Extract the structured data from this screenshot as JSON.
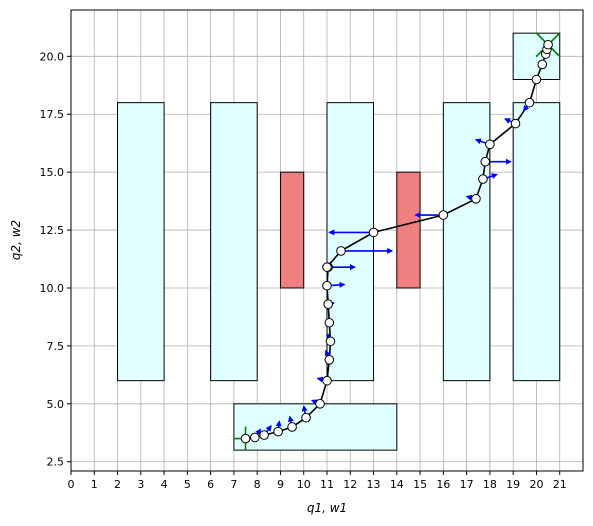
{
  "chart_data": {
    "type": "scatter",
    "title": "",
    "xlabel": "q1, w1",
    "ylabel": "q2, w2",
    "xlim": [
      0,
      22
    ],
    "ylim": [
      2.1,
      22
    ],
    "grid": true,
    "x_ticks": [
      0,
      1,
      2,
      3,
      4,
      5,
      6,
      7,
      8,
      9,
      10,
      11,
      12,
      13,
      14,
      15,
      16,
      17,
      18,
      19,
      20,
      21
    ],
    "x_tick_labels": [
      "0",
      "1",
      "2",
      "3",
      "4",
      "5",
      "6",
      "7",
      "8",
      "9",
      "10",
      "11",
      "12",
      "13",
      "14",
      "15",
      "16",
      "17",
      "18",
      "19",
      "20",
      "21"
    ],
    "y_ticks": [
      2.5,
      5.0,
      7.5,
      10.0,
      12.5,
      15.0,
      17.5,
      20.0
    ],
    "y_tick_labels": [
      "2.5",
      "5.0",
      "7.5",
      "10.0",
      "12.5",
      "15.0",
      "17.5",
      "20.0"
    ],
    "regions": [
      {
        "kind": "safe",
        "x": [
          2,
          4
        ],
        "y": [
          6,
          18
        ]
      },
      {
        "kind": "safe",
        "x": [
          6,
          8
        ],
        "y": [
          6,
          18
        ]
      },
      {
        "kind": "safe",
        "x": [
          11,
          13
        ],
        "y": [
          6,
          18
        ]
      },
      {
        "kind": "safe",
        "x": [
          16,
          18
        ],
        "y": [
          6,
          18
        ]
      },
      {
        "kind": "safe",
        "x": [
          19,
          21
        ],
        "y": [
          6,
          18
        ]
      },
      {
        "kind": "safe",
        "x": [
          7,
          14
        ],
        "y": [
          3,
          5
        ]
      },
      {
        "kind": "safe",
        "x": [
          19,
          21
        ],
        "y": [
          19,
          21
        ]
      },
      {
        "kind": "obstacle",
        "x": [
          9,
          10
        ],
        "y": [
          10,
          15
        ]
      },
      {
        "kind": "obstacle",
        "x": [
          14,
          15
        ],
        "y": [
          10,
          15
        ]
      }
    ],
    "path": {
      "x": [
        7.5,
        7.9,
        8.3,
        8.9,
        9.5,
        10.1,
        10.7,
        11.0,
        11.1,
        11.15,
        11.1,
        11.05,
        11.0,
        11.05,
        11.0,
        11.6,
        13.0,
        16.0,
        17.4,
        17.7,
        17.8,
        18.0,
        19.1,
        19.7,
        20.0,
        20.25,
        20.4,
        20.45,
        20.5
      ],
      "y": [
        3.5,
        3.55,
        3.65,
        3.8,
        4.0,
        4.4,
        5.0,
        6.0,
        6.9,
        7.7,
        8.5,
        9.3,
        10.1,
        10.9,
        10.9,
        11.6,
        12.4,
        13.15,
        13.85,
        14.7,
        15.45,
        16.2,
        17.1,
        18.0,
        19.0,
        19.65,
        20.1,
        20.3,
        20.5
      ]
    },
    "arrows": [
      {
        "x": 7.9,
        "y": 3.55,
        "dx": 0.25,
        "dy": 0.35
      },
      {
        "x": 8.3,
        "y": 3.65,
        "dx": 0.3,
        "dy": 0.4
      },
      {
        "x": 8.9,
        "y": 3.8,
        "dx": 0.05,
        "dy": 0.45
      },
      {
        "x": 9.5,
        "y": 4.0,
        "dx": -0.1,
        "dy": 0.45
      },
      {
        "x": 10.1,
        "y": 4.4,
        "dx": -0.1,
        "dy": 0.5
      },
      {
        "x": 10.7,
        "y": 5.0,
        "dx": -0.35,
        "dy": 0.15
      },
      {
        "x": 11.0,
        "y": 6.0,
        "dx": -0.4,
        "dy": 0.1
      },
      {
        "x": 11.1,
        "y": 6.9,
        "dx": -0.15,
        "dy": 0.4
      },
      {
        "x": 11.15,
        "y": 7.7,
        "dx": -0.1,
        "dy": 0.3
      },
      {
        "x": 11.0,
        "y": 9.3,
        "dx": 0.3,
        "dy": 0.05
      },
      {
        "x": 11.05,
        "y": 10.1,
        "dx": 0.7,
        "dy": 0.05
      },
      {
        "x": 11.0,
        "y": 10.9,
        "dx": 1.2,
        "dy": 0.0
      },
      {
        "x": 11.6,
        "y": 11.6,
        "dx": 2.2,
        "dy": 0.0
      },
      {
        "x": 13.0,
        "y": 12.4,
        "dx": -1.9,
        "dy": 0.0
      },
      {
        "x": 16.0,
        "y": 13.15,
        "dx": -1.2,
        "dy": 0.0
      },
      {
        "x": 17.4,
        "y": 13.85,
        "dx": -0.4,
        "dy": 0.1
      },
      {
        "x": 17.7,
        "y": 14.7,
        "dx": 0.6,
        "dy": 0.2
      },
      {
        "x": 17.8,
        "y": 15.45,
        "dx": 1.1,
        "dy": 0.0
      },
      {
        "x": 18.0,
        "y": 16.2,
        "dx": -0.6,
        "dy": 0.2
      },
      {
        "x": 19.1,
        "y": 17.1,
        "dx": -0.45,
        "dy": 0.2
      },
      {
        "x": 19.7,
        "y": 18.0,
        "dx": -0.25,
        "dy": -0.35
      }
    ],
    "markers": [
      {
        "kind": "start",
        "x": 7.5,
        "y": 3.5
      },
      {
        "kind": "goal",
        "x": 20.5,
        "y": 20.5
      }
    ],
    "colors": {
      "safe_fill": "#e0ffff",
      "obstacle_fill": "#f08080",
      "path": "#000000",
      "arrow": "#0000ff",
      "marker": "#008000",
      "grid": "#b0b0b0"
    }
  }
}
